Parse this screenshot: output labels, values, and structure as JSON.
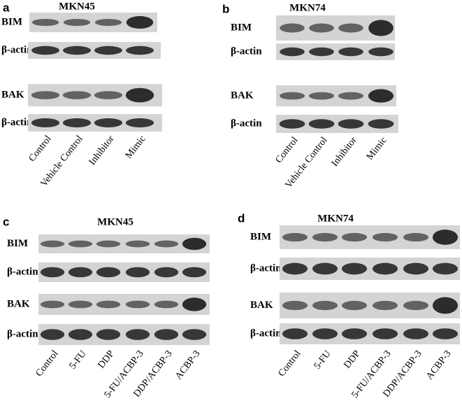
{
  "panels": [
    {
      "letter": "a",
      "title": "MKN45",
      "rows": [
        "BIM",
        "β-actin",
        "BAK",
        "β-actin"
      ],
      "lanes": [
        "Control",
        "Vehicle Control",
        "Inhibitor",
        "Mimic"
      ]
    },
    {
      "letter": "b",
      "title": "MKN74",
      "rows": [
        "BIM",
        "β-actin",
        "BAK",
        "β-actin"
      ],
      "lanes": [
        "Control",
        "Vehicle Control",
        "Inhibitor",
        "Mimic"
      ]
    },
    {
      "letter": "c",
      "title": "MKN45",
      "rows": [
        "BIM",
        "β-actin",
        "BAK",
        "β-actin"
      ],
      "lanes": [
        "Control",
        "5-FU",
        "DDP",
        "5-FU/ACBP-3",
        "DDP/ACBP-3",
        "ACBP-3"
      ]
    },
    {
      "letter": "d",
      "title": "MKN74",
      "rows": [
        "BIM",
        "β-actin",
        "BAK",
        "β-actin"
      ],
      "lanes": [
        "Control",
        "5-FU",
        "DDP",
        "5-FU/ACBP-3",
        "DDP/ACBP-3",
        "ACBP-3"
      ]
    }
  ]
}
